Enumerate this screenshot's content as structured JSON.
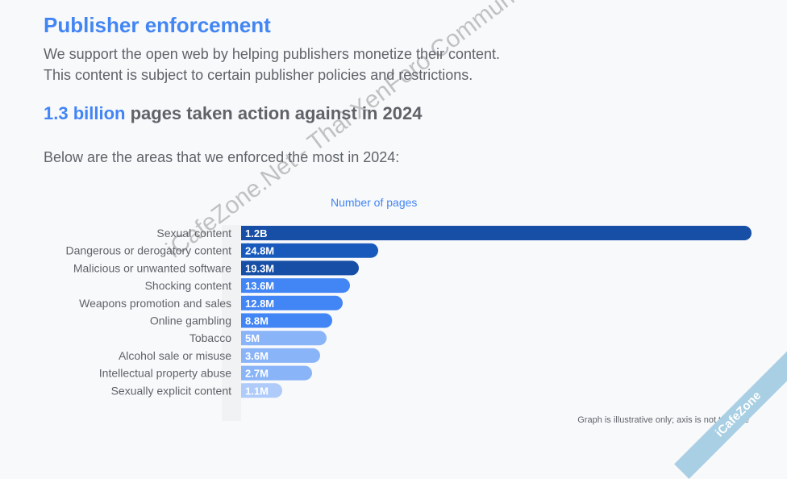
{
  "header": {
    "title": "Publisher enforcement",
    "line1": "We support the open web by helping publishers monetize their content.",
    "line2": "This content is subject to certain publisher policies and restrictions.",
    "headline_highlight": "1.3 billion",
    "headline_rest": " pages taken action against in 2024",
    "intro": "Below are the areas that we enforced the most in 2024:"
  },
  "chart_data": {
    "type": "bar",
    "orientation": "horizontal",
    "title": "Number of pages",
    "categories": [
      "Sexual content",
      "Dangerous or derogatory content",
      "Malicious or unwanted software",
      "Shocking content",
      "Weapons promotion and sales",
      "Online gambling",
      "Tobacco",
      "Alcohol sale or misuse",
      "Intellectual property abuse",
      "Sexually explicit content"
    ],
    "values": [
      1200000000,
      24800000,
      19300000,
      13600000,
      12800000,
      8800000,
      5000000,
      3600000,
      2700000,
      1100000
    ],
    "data_labels": [
      "1.2B",
      "24.8M",
      "19.3M",
      "13.6M",
      "12.8M",
      "8.8M",
      "5M",
      "3.6M",
      "2.7M",
      "1.1M"
    ],
    "colors": [
      "#174ea6",
      "#185abc",
      "#174ea6",
      "#4285f4",
      "#4285f4",
      "#4285f4",
      "#8ab4f8",
      "#8ab4f8",
      "#8ab4f8",
      "#aecbfa"
    ],
    "grid": false,
    "note": "Graph is illustrative only; axis is not to scale"
  },
  "watermark": {
    "text": "iCafeZone.Net - Thai XenForo Community",
    "corner": "iCafeZone"
  }
}
